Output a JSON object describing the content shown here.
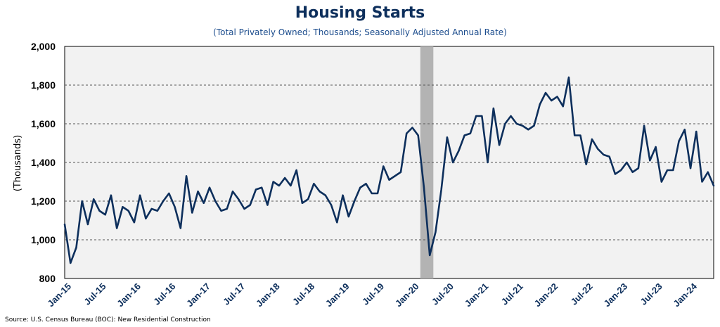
{
  "chart_data": {
    "type": "line",
    "title": "Housing Starts",
    "subtitle": "(Total Privately Owned; Thousands; Seasonally Adjusted Annual Rate)",
    "ylabel": "(Thousands)",
    "xlabel": "",
    "ylim": [
      800,
      2000
    ],
    "yticks": [
      800,
      1000,
      1200,
      1400,
      1600,
      1800,
      2000
    ],
    "ytick_labels": [
      "800",
      "1,000",
      "1,200",
      "1,400",
      "1,600",
      "1,800",
      "2,000"
    ],
    "xtick_labels": [
      "Jan-15",
      "Jul-15",
      "Jan-16",
      "Jul-16",
      "Jan-17",
      "Jul-17",
      "Jan-18",
      "Jul-18",
      "Jan-19",
      "Jul-19",
      "Jan-20",
      "Jul-20",
      "Jan-21",
      "Jul-21",
      "Jan-22",
      "Jul-22",
      "Jan-23",
      "Jul-23",
      "Jan-24"
    ],
    "x_start": "Jan-15",
    "grid": "horizontal dashed",
    "recession_shading": {
      "from": "Mar-20",
      "to": "Apr-20",
      "color": "#b3b3b3"
    },
    "series": [
      {
        "color": "#0d2f5c",
        "values": [
          1080,
          880,
          960,
          1200,
          1080,
          1210,
          1150,
          1130,
          1230,
          1060,
          1170,
          1150,
          1090,
          1230,
          1110,
          1160,
          1150,
          1200,
          1240,
          1170,
          1060,
          1330,
          1140,
          1250,
          1190,
          1270,
          1200,
          1150,
          1160,
          1250,
          1210,
          1160,
          1180,
          1260,
          1270,
          1180,
          1300,
          1280,
          1320,
          1280,
          1360,
          1190,
          1210,
          1290,
          1250,
          1230,
          1180,
          1090,
          1230,
          1120,
          1200,
          1270,
          1290,
          1240,
          1240,
          1380,
          1310,
          1330,
          1350,
          1550,
          1580,
          1540,
          1270,
          920,
          1040,
          1260,
          1530,
          1400,
          1460,
          1540,
          1550,
          1640,
          1640,
          1400,
          1680,
          1490,
          1600,
          1640,
          1600,
          1590,
          1570,
          1590,
          1700,
          1760,
          1720,
          1740,
          1690,
          1840,
          1540,
          1540,
          1390,
          1520,
          1470,
          1440,
          1430,
          1340,
          1360,
          1400,
          1350,
          1370,
          1590,
          1410,
          1480,
          1300,
          1360,
          1360,
          1510,
          1570,
          1370,
          1560,
          1300,
          1350,
          1280
        ]
      }
    ]
  },
  "source": "Source: U.S. Census Bureau (BOC): New Residential Construction"
}
